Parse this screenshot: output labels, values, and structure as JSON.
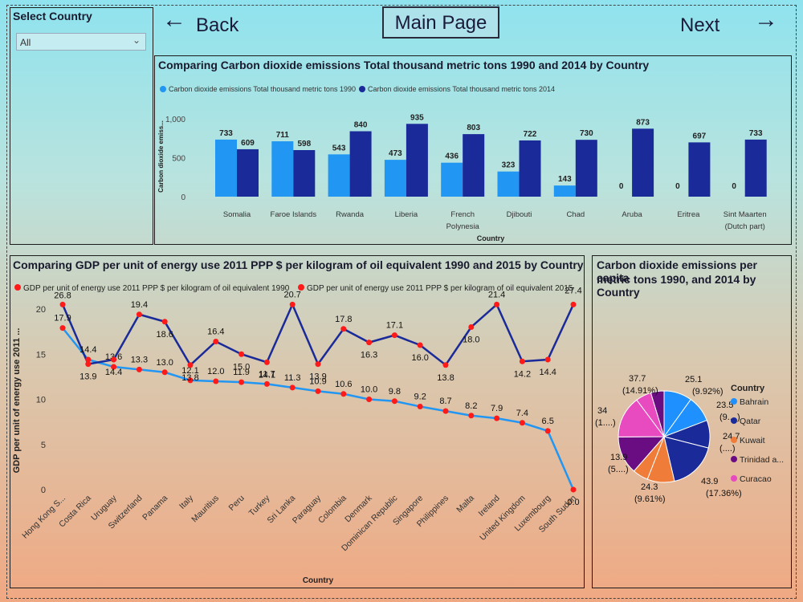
{
  "slicer": {
    "title": "Select Country",
    "value": "All"
  },
  "nav": {
    "back_label": "Back",
    "main_label": "Main Page",
    "next_label": "Next"
  },
  "bar": {
    "title": "Comparing Carbon dioxide emissions Total thousand metric tons 1990 and 2014 by Country",
    "colors": [
      "#2196f3",
      "#1a2a99"
    ]
  },
  "line": {
    "title": "Comparing GDP per unit of energy use 2011 PPP $ per kilogram of oil equivalent 1990 and 2015 by Country",
    "colors": [
      "#2196f3",
      "#1a2a99"
    ],
    "marker_color": "#ff1a1a"
  },
  "pie": {
    "title_line1": "Carbon dioxide emissions per capita",
    "title_line2": "metric tons 1990, and 2014 by Country",
    "legend_title": "Country"
  },
  "chart_data": [
    {
      "type": "bar",
      "ylabel": "Carbon dioxide emiss...",
      "xlabel": "Country",
      "ylim": [
        0,
        1000
      ],
      "yticks": [
        "0",
        "500",
        "1,000"
      ],
      "categories": [
        "Somalia",
        "Faroe Islands",
        "Rwanda",
        "Liberia",
        "French Polynesia",
        "Djibouti",
        "Chad",
        "Aruba",
        "Eritrea",
        "Sint Maarten (Dutch part)"
      ],
      "series": [
        {
          "name": "Carbon dioxide emissions Total thousand metric tons 1990",
          "values": [
            733,
            711,
            543,
            473,
            436,
            323,
            143,
            0,
            0,
            0
          ]
        },
        {
          "name": "Carbon dioxide emissions Total thousand metric tons 2014",
          "values": [
            609,
            598,
            840,
            935,
            803,
            722,
            730,
            873,
            697,
            733
          ]
        }
      ]
    },
    {
      "type": "line",
      "ylabel": "GDP per unit of energy use 2011 ...",
      "xlabel": "Country",
      "ylim": [
        0,
        20
      ],
      "yticks": [
        "0",
        "5",
        "10",
        "15",
        "20"
      ],
      "categories": [
        "Hong Kong S...",
        "Costa Rica",
        "Uruguay",
        "Switzerland",
        "Panama",
        "Italy",
        "Mauritius",
        "Peru",
        "Turkey",
        "Sri Lanka",
        "Paraguay",
        "Colombia",
        "Denmark",
        "Dominican Republic",
        "Singapore",
        "Philippines",
        "Malta",
        "Ireland",
        "United Kingdom",
        "Luxembourg",
        "South Sudan"
      ],
      "series": [
        {
          "name": "GDP per unit of energy use  2011 PPP $ per kilogram of oil equivalent 1990",
          "values": [
            17.9,
            14.4,
            13.6,
            13.3,
            13.0,
            12.1,
            12.0,
            11.9,
            11.7,
            11.3,
            10.9,
            10.6,
            10.0,
            9.8,
            9.2,
            8.7,
            8.2,
            7.9,
            7.4,
            6.5,
            0.0
          ]
        },
        {
          "name": "GDP per unit of energy use  2011 PPP $ per kilogram of oil equivalent 2015",
          "values": [
            26.8,
            13.9,
            14.4,
            19.4,
            18.6,
            13.8,
            16.4,
            15.0,
            14.1,
            20.7,
            13.9,
            17.8,
            16.3,
            17.1,
            16.0,
            13.8,
            18.0,
            21.4,
            14.2,
            14.4,
            27.4
          ]
        }
      ]
    },
    {
      "type": "pie",
      "slices": [
        {
          "name": "Bahrain",
          "value": 25.1,
          "pct": "(9.92%)",
          "color": "#1e90ff"
        },
        {
          "name": "Qatar",
          "value": 43.9,
          "pct": "(17.36%)",
          "color": "#1a2a99"
        },
        {
          "name": "Kuwait",
          "value": 24.3,
          "pct": "(9.61%)",
          "color": "#f07c3a"
        },
        {
          "name": "Trinidad a...",
          "value": 37.7,
          "pct": "(14.91%)",
          "color": "#6a0d82"
        },
        {
          "name": "Curacao",
          "value": 37.7,
          "pct": "(14.91%)",
          "color": "#e84ac0"
        }
      ],
      "extra_labels": [
        {
          "value": "23.5",
          "pct": "(9....)"
        },
        {
          "value": "24.7",
          "pct": "(....)"
        },
        {
          "value": "13.9",
          "pct": "(5....)"
        },
        {
          "value": "34",
          "pct": "(1....)"
        }
      ]
    }
  ]
}
